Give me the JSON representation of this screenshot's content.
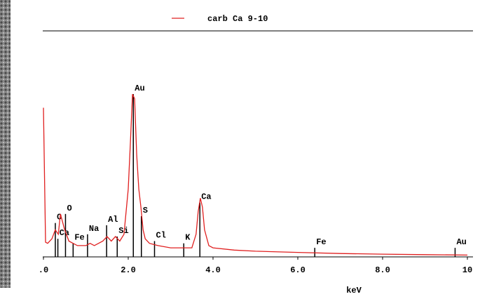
{
  "chart_data": {
    "type": "line",
    "x_label": "keV",
    "xlim": [
      0,
      10
    ],
    "ylim": [
      0,
      100
    ],
    "xticks": [
      {
        "value": 0,
        "label": ".0"
      },
      {
        "value": 2,
        "label": "2.0"
      },
      {
        "value": 4,
        "label": "4.0"
      },
      {
        "value": 6,
        "label": "6.0"
      },
      {
        "value": 8,
        "label": "8.0"
      },
      10
    ],
    "legend": "top",
    "x": [
      0,
      0.05,
      0.1,
      0.2,
      0.28,
      0.35,
      0.4,
      0.5,
      0.6,
      0.7,
      0.8,
      1.0,
      1.1,
      1.2,
      1.4,
      1.5,
      1.6,
      1.7,
      1.8,
      1.9,
      2.0,
      2.05,
      2.1,
      2.15,
      2.2,
      2.25,
      2.3,
      2.35,
      2.4,
      2.5,
      2.7,
      3.0,
      3.3,
      3.5,
      3.6,
      3.65,
      3.7,
      3.75,
      3.8,
      3.9,
      4.0,
      4.5,
      5,
      6,
      7,
      8,
      9,
      10
    ],
    "series": [
      {
        "name": "carb Ca 9-10",
        "color": "#e02020",
        "values": [
          66,
          6.5,
          6,
          8,
          12,
          10,
          19,
          12,
          7,
          6,
          5,
          5,
          6,
          5,
          7,
          9,
          7,
          9,
          7,
          10,
          30,
          50,
          72,
          70,
          45,
          30,
          22,
          12,
          8,
          6,
          5,
          4,
          4,
          4,
          10,
          20,
          26,
          22,
          12,
          5,
          4,
          3,
          2.5,
          2,
          1.5,
          1.2,
          1,
          0.8
        ]
      }
    ],
    "markers": [
      {
        "label": "C",
        "x": 0.28,
        "height": 15
      },
      {
        "label": "Ca",
        "x": 0.34,
        "height": 8
      },
      {
        "label": "O",
        "x": 0.52,
        "height": 19
      },
      {
        "label": "Fe",
        "x": 0.7,
        "height": 6
      },
      {
        "label": "Na",
        "x": 1.04,
        "height": 10
      },
      {
        "label": "Al",
        "x": 1.49,
        "height": 14
      },
      {
        "label": "Si",
        "x": 1.74,
        "height": 9
      },
      {
        "label": "Au",
        "x": 2.12,
        "height": 72
      },
      {
        "label": "S",
        "x": 2.31,
        "height": 18
      },
      {
        "label": "Cl",
        "x": 2.62,
        "height": 7
      },
      {
        "label": "K",
        "x": 3.31,
        "height": 6
      },
      {
        "label": "Ca",
        "x": 3.69,
        "height": 24
      },
      {
        "label": "Fe",
        "x": 6.4,
        "height": 4
      },
      {
        "label": "Au",
        "x": 9.71,
        "height": 4
      }
    ]
  }
}
